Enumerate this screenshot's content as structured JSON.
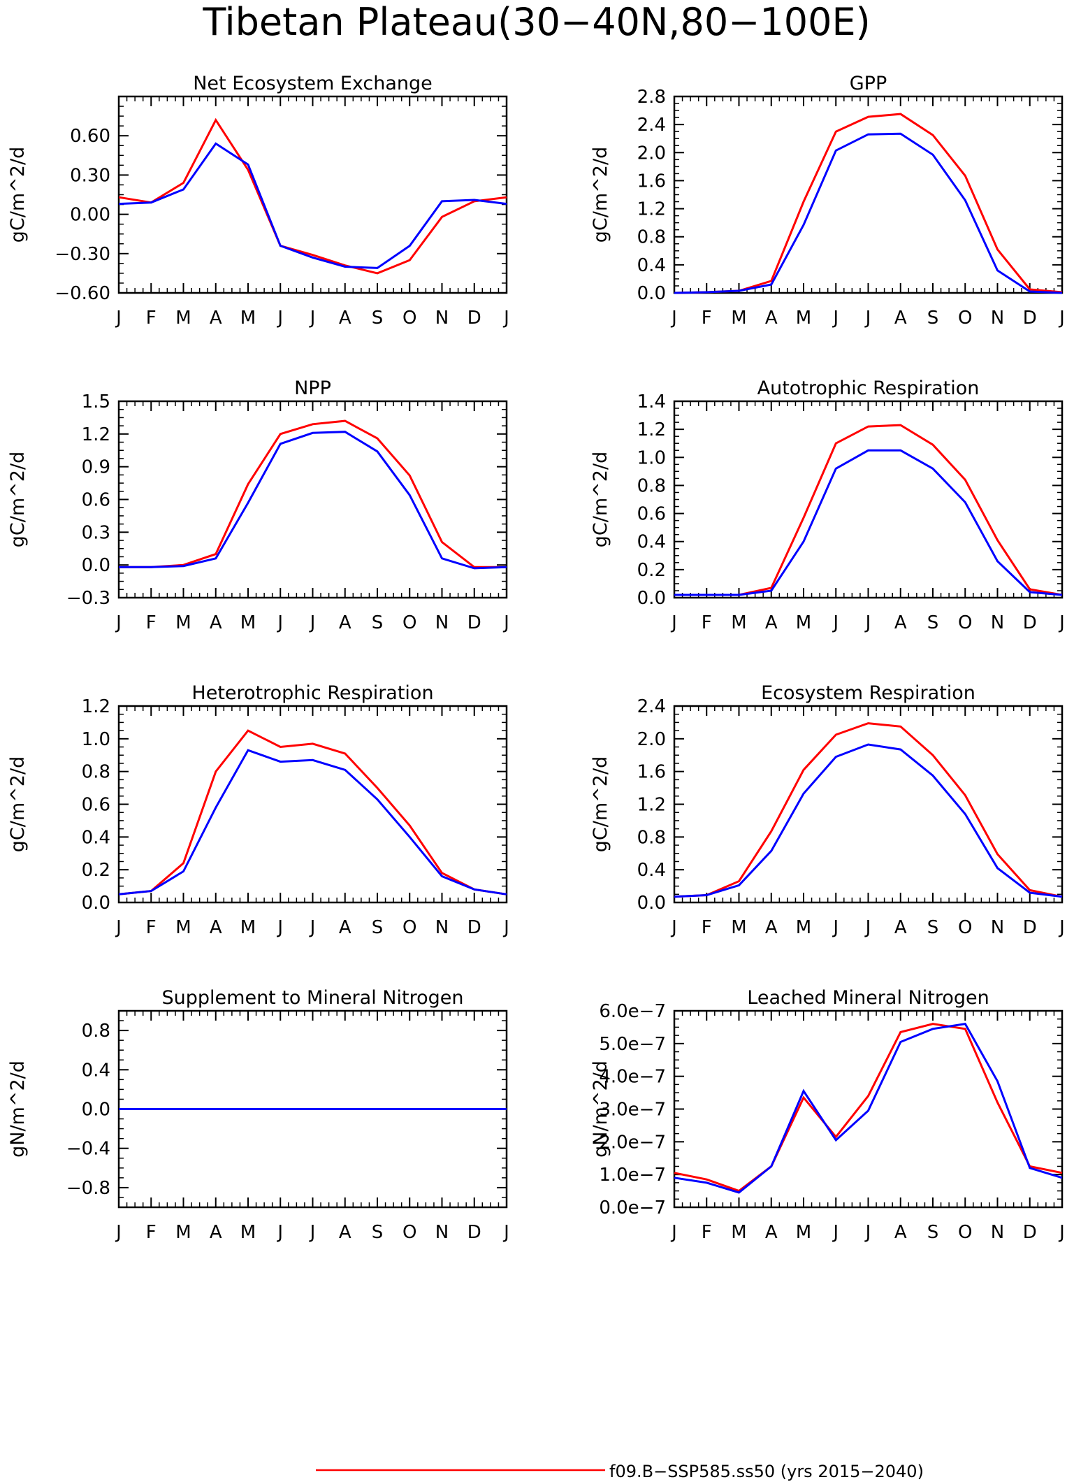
{
  "figure": {
    "title": "Tibetan Plateau(30−40N,80−100E)",
    "legend": [
      {
        "label": "f09.B−SSP585.ss50 (yrs 2015−2040)",
        "color": "#ff0000"
      }
    ]
  },
  "colors": {
    "series_red": "#ff0000",
    "series_blue": "#0000ff"
  },
  "chart_data": [
    {
      "type": "line",
      "title": "Net Ecosystem Exchange",
      "ylabel": "gC/m^2/d",
      "categories": [
        "J",
        "F",
        "M",
        "A",
        "M",
        "J",
        "J",
        "A",
        "S",
        "O",
        "N",
        "D",
        "J"
      ],
      "ylim": [
        -0.6,
        0.9
      ],
      "yticks": [
        -0.6,
        -0.3,
        0.0,
        0.3,
        0.6
      ],
      "yticklabels": [
        "−0.60",
        "−0.30",
        "0.00",
        "0.30",
        "0.60"
      ],
      "series": [
        {
          "color": "#ff0000",
          "values": [
            0.13,
            0.09,
            0.24,
            0.72,
            0.34,
            -0.24,
            -0.31,
            -0.39,
            -0.45,
            -0.35,
            -0.02,
            0.1,
            0.13
          ]
        },
        {
          "color": "#0000ff",
          "values": [
            0.08,
            0.09,
            0.19,
            0.54,
            0.38,
            -0.24,
            -0.33,
            -0.4,
            -0.41,
            -0.24,
            0.1,
            0.11,
            0.08
          ]
        }
      ]
    },
    {
      "type": "line",
      "title": "GPP",
      "ylabel": "gC/m^2/d",
      "categories": [
        "J",
        "F",
        "M",
        "A",
        "M",
        "J",
        "J",
        "A",
        "S",
        "O",
        "N",
        "D",
        "J"
      ],
      "ylim": [
        0.0,
        2.8
      ],
      "yticks": [
        0.0,
        0.4,
        0.8,
        1.2,
        1.6,
        2.0,
        2.4,
        2.8
      ],
      "yticklabels": [
        "0.0",
        "0.4",
        "0.8",
        "1.2",
        "1.6",
        "2.0",
        "2.4",
        "2.8"
      ],
      "series": [
        {
          "color": "#ff0000",
          "values": [
            0.0,
            0.01,
            0.03,
            0.17,
            1.3,
            2.3,
            2.51,
            2.55,
            2.25,
            1.67,
            0.62,
            0.05,
            0.01
          ]
        },
        {
          "color": "#0000ff",
          "values": [
            0.0,
            0.01,
            0.03,
            0.12,
            0.97,
            2.03,
            2.26,
            2.27,
            1.97,
            1.32,
            0.32,
            0.02,
            0.0
          ]
        }
      ]
    },
    {
      "type": "line",
      "title": "NPP",
      "ylabel": "gC/m^2/d",
      "categories": [
        "J",
        "F",
        "M",
        "A",
        "M",
        "J",
        "J",
        "A",
        "S",
        "O",
        "N",
        "D",
        "J"
      ],
      "ylim": [
        -0.3,
        1.5
      ],
      "yticks": [
        -0.3,
        0.0,
        0.3,
        0.6,
        0.9,
        1.2,
        1.5
      ],
      "yticklabels": [
        "−0.3",
        "0.0",
        "0.3",
        "0.6",
        "0.9",
        "1.2",
        "1.5"
      ],
      "series": [
        {
          "color": "#ff0000",
          "values": [
            -0.02,
            -0.02,
            0.0,
            0.1,
            0.74,
            1.2,
            1.29,
            1.32,
            1.16,
            0.82,
            0.21,
            -0.02,
            -0.02
          ]
        },
        {
          "color": "#0000ff",
          "values": [
            -0.02,
            -0.02,
            -0.01,
            0.06,
            0.57,
            1.11,
            1.21,
            1.22,
            1.04,
            0.64,
            0.06,
            -0.03,
            -0.02
          ]
        }
      ]
    },
    {
      "type": "line",
      "title": "Autotrophic Respiration",
      "ylabel": "gC/m^2/d",
      "categories": [
        "J",
        "F",
        "M",
        "A",
        "M",
        "J",
        "J",
        "A",
        "S",
        "O",
        "N",
        "D",
        "J"
      ],
      "ylim": [
        0.0,
        1.4
      ],
      "yticks": [
        0.0,
        0.2,
        0.4,
        0.6,
        0.8,
        1.0,
        1.2,
        1.4
      ],
      "yticklabels": [
        "0.0",
        "0.2",
        "0.4",
        "0.6",
        "0.8",
        "1.0",
        "1.2",
        "1.4"
      ],
      "series": [
        {
          "color": "#ff0000",
          "values": [
            0.02,
            0.02,
            0.02,
            0.07,
            0.57,
            1.1,
            1.22,
            1.23,
            1.09,
            0.84,
            0.41,
            0.06,
            0.02
          ]
        },
        {
          "color": "#0000ff",
          "values": [
            0.02,
            0.02,
            0.02,
            0.05,
            0.4,
            0.92,
            1.05,
            1.05,
            0.92,
            0.68,
            0.26,
            0.04,
            0.02
          ]
        }
      ]
    },
    {
      "type": "line",
      "title": "Heterotrophic Respiration",
      "ylabel": "gC/m^2/d",
      "categories": [
        "J",
        "F",
        "M",
        "A",
        "M",
        "J",
        "J",
        "A",
        "S",
        "O",
        "N",
        "D",
        "J"
      ],
      "ylim": [
        0.0,
        1.2
      ],
      "yticks": [
        0.0,
        0.2,
        0.4,
        0.6,
        0.8,
        1.0,
        1.2
      ],
      "yticklabels": [
        "0.0",
        "0.2",
        "0.4",
        "0.6",
        "0.8",
        "1.0",
        "1.2"
      ],
      "series": [
        {
          "color": "#ff0000",
          "values": [
            0.05,
            0.07,
            0.24,
            0.8,
            1.05,
            0.95,
            0.97,
            0.91,
            0.7,
            0.47,
            0.18,
            0.08,
            0.05
          ]
        },
        {
          "color": "#0000ff",
          "values": [
            0.05,
            0.07,
            0.19,
            0.58,
            0.93,
            0.86,
            0.87,
            0.81,
            0.63,
            0.4,
            0.16,
            0.08,
            0.05
          ]
        }
      ]
    },
    {
      "type": "line",
      "title": "Ecosystem Respiration",
      "ylabel": "gC/m^2/d",
      "categories": [
        "J",
        "F",
        "M",
        "A",
        "M",
        "J",
        "J",
        "A",
        "S",
        "O",
        "N",
        "D",
        "J"
      ],
      "ylim": [
        0.0,
        2.4
      ],
      "yticks": [
        0.0,
        0.4,
        0.8,
        1.2,
        1.6,
        2.0,
        2.4
      ],
      "yticklabels": [
        "0.0",
        "0.4",
        "0.8",
        "1.2",
        "1.6",
        "2.0",
        "2.4"
      ],
      "series": [
        {
          "color": "#ff0000",
          "values": [
            0.07,
            0.09,
            0.26,
            0.87,
            1.62,
            2.05,
            2.19,
            2.15,
            1.8,
            1.31,
            0.59,
            0.15,
            0.07
          ]
        },
        {
          "color": "#0000ff",
          "values": [
            0.07,
            0.09,
            0.21,
            0.63,
            1.33,
            1.78,
            1.93,
            1.87,
            1.55,
            1.08,
            0.42,
            0.12,
            0.07
          ]
        }
      ]
    },
    {
      "type": "line",
      "title": "Supplement to Mineral Nitrogen",
      "ylabel": "gN/m^2/d",
      "categories": [
        "J",
        "F",
        "M",
        "A",
        "M",
        "J",
        "J",
        "A",
        "S",
        "O",
        "N",
        "D",
        "J"
      ],
      "ylim": [
        -1.0,
        1.0
      ],
      "yticks": [
        -0.8,
        -0.4,
        0.0,
        0.4,
        0.8
      ],
      "yticklabels": [
        "−0.8",
        "−0.4",
        "0.0",
        "0.4",
        "0.8"
      ],
      "series": [
        {
          "color": "#ff0000",
          "values": [
            0,
            0,
            0,
            0,
            0,
            0,
            0,
            0,
            0,
            0,
            0,
            0,
            0
          ]
        },
        {
          "color": "#0000ff",
          "values": [
            0,
            0,
            0,
            0,
            0,
            0,
            0,
            0,
            0,
            0,
            0,
            0,
            0
          ]
        }
      ]
    },
    {
      "type": "line",
      "title": "Leached Mineral Nitrogen",
      "ylabel": "gN/m^2/d",
      "categories": [
        "J",
        "F",
        "M",
        "A",
        "M",
        "J",
        "J",
        "A",
        "S",
        "O",
        "N",
        "D",
        "J"
      ],
      "ylim": [
        0.0,
        6.0
      ],
      "value_scale": "1e-7",
      "yticks": [
        0,
        1,
        2,
        3,
        4,
        5,
        6
      ],
      "yticklabels": [
        "0.0e−7",
        "1.0e−7",
        "2.0e−7",
        "3.0e−7",
        "4.0e−7",
        "5.0e−7",
        "6.0e−7"
      ],
      "series": [
        {
          "color": "#ff0000",
          "values": [
            1.05,
            0.85,
            0.5,
            1.25,
            3.35,
            2.15,
            3.4,
            5.35,
            5.6,
            5.45,
            3.2,
            1.25,
            1.05
          ]
        },
        {
          "color": "#0000ff",
          "values": [
            0.9,
            0.75,
            0.45,
            1.25,
            3.55,
            2.05,
            2.95,
            5.05,
            5.45,
            5.6,
            3.85,
            1.2,
            0.9
          ]
        }
      ]
    }
  ]
}
